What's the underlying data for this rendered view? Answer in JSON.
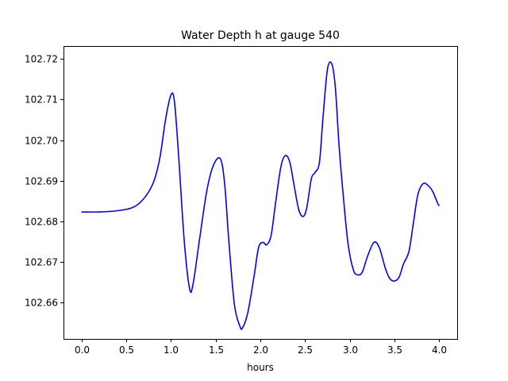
{
  "chart_data": {
    "type": "line",
    "title": "Water Depth h at gauge 540",
    "xlabel": "hours",
    "ylabel": "",
    "xlim": [
      -0.2,
      4.2
    ],
    "ylim": [
      102.651,
      102.7232
    ],
    "xticks": [
      0.0,
      0.5,
      1.0,
      1.5,
      2.0,
      2.5,
      3.0,
      3.5,
      4.0
    ],
    "xtick_labels": [
      "0.0",
      "0.5",
      "1.0",
      "1.5",
      "2.0",
      "2.5",
      "3.0",
      "3.5",
      "4.0"
    ],
    "yticks": [
      102.66,
      102.67,
      102.68,
      102.69,
      102.7,
      102.71,
      102.72
    ],
    "ytick_labels": [
      "102.66",
      "102.67",
      "102.68",
      "102.69",
      "102.70",
      "102.71",
      "102.72"
    ],
    "grid": false,
    "line_color": "#0000ff",
    "series": [
      {
        "x": [
          0.0,
          0.2,
          0.4,
          0.55,
          0.65,
          0.75,
          0.82,
          0.88,
          0.94,
          1.0,
          1.04,
          1.09,
          1.15,
          1.21,
          1.25,
          1.32,
          1.4,
          1.47,
          1.55,
          1.6,
          1.65,
          1.71,
          1.77,
          1.8,
          1.86,
          1.93,
          1.98,
          2.03,
          2.07,
          2.12,
          2.17,
          2.23,
          2.28,
          2.33,
          2.38,
          2.43,
          2.48,
          2.52,
          2.57,
          2.61,
          2.66,
          2.7,
          2.75,
          2.8,
          2.84,
          2.88,
          2.93,
          2.98,
          3.04,
          3.09,
          3.14,
          3.2,
          3.27,
          3.33,
          3.4,
          3.45,
          3.5,
          3.55,
          3.6,
          3.66,
          3.71,
          3.76,
          3.82,
          3.88,
          3.93,
          3.98,
          4.0
        ],
        "y": [
          102.6823,
          102.6823,
          102.6826,
          102.6832,
          102.6845,
          102.6872,
          102.6905,
          102.696,
          102.705,
          102.7111,
          102.7095,
          102.695,
          102.675,
          102.6633,
          102.6648,
          102.6755,
          102.6873,
          102.6935,
          102.6955,
          102.6895,
          102.6745,
          102.6595,
          102.6542,
          102.6537,
          102.6575,
          102.6665,
          102.6735,
          102.6748,
          102.6742,
          102.6765,
          102.6845,
          102.6935,
          102.6962,
          102.6945,
          102.6885,
          102.6828,
          102.6812,
          102.6835,
          102.6905,
          102.692,
          102.6945,
          102.7055,
          102.7175,
          102.7187,
          102.7125,
          102.6985,
          102.6855,
          102.6745,
          102.668,
          102.6668,
          102.6675,
          102.6715,
          102.6748,
          102.6735,
          102.6682,
          102.6658,
          102.6653,
          102.6662,
          102.6695,
          102.6725,
          102.6795,
          102.6865,
          102.6893,
          102.6887,
          102.6872,
          102.6845,
          102.6838
        ]
      }
    ]
  }
}
